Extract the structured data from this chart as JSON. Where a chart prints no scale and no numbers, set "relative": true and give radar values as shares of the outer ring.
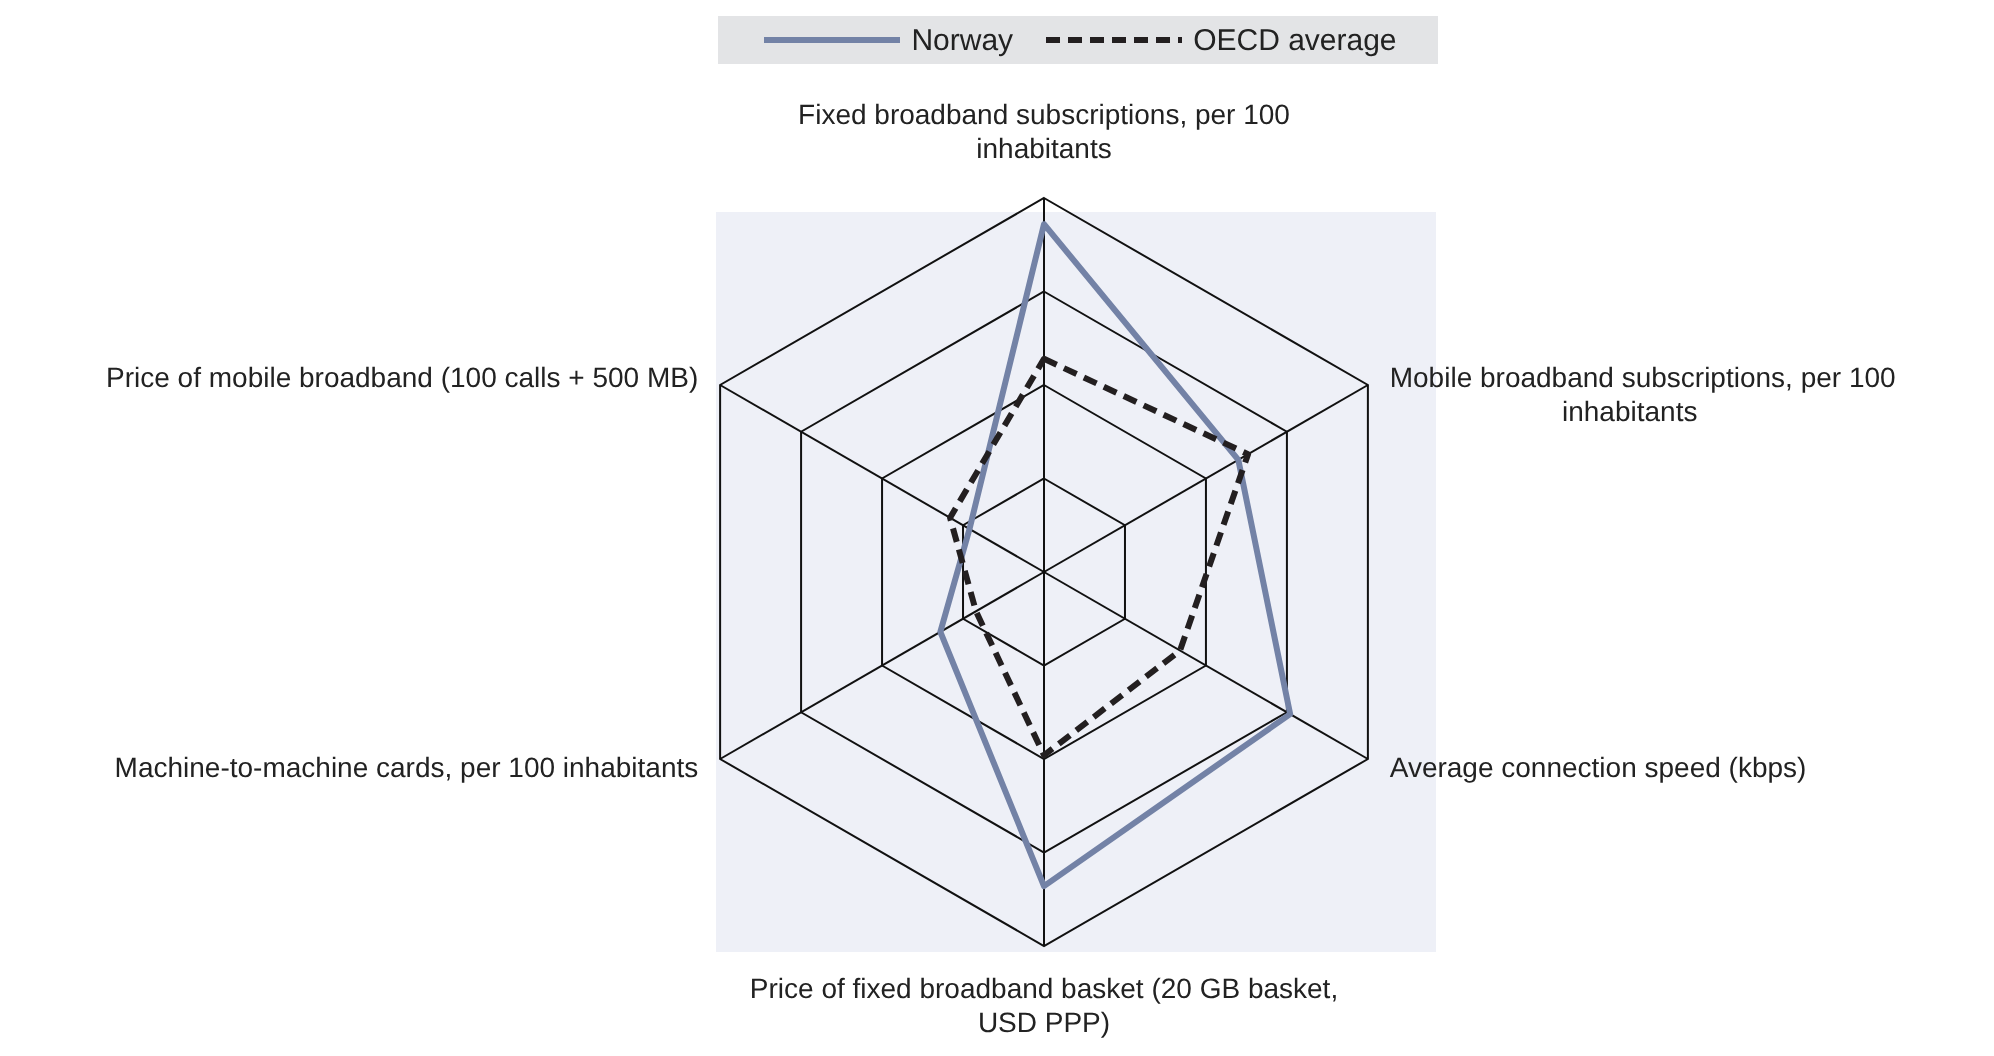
{
  "chart_data": {
    "type": "radar",
    "relative": true,
    "legend": "top",
    "grid": true,
    "categories": [
      "Fixed broadband subscriptions, per 100 inhabitants",
      "Mobile broadband subscriptions, per 100 inhabitants",
      "Average connection speed (kbps)",
      "Price of fixed broadband basket (20 GB basket, USD PPP)",
      "Machine-to-machine cards, per 100 inhabitants",
      "Price of mobile broadband (100 calls + 500 MB)"
    ],
    "series": [
      {
        "name": "Norway",
        "color": "#7382a6",
        "line_style": "solid",
        "values": [
          0.93,
          0.6,
          0.76,
          0.84,
          0.32,
          0.23
        ]
      },
      {
        "name": "OECD average",
        "color": "#231f20",
        "line_style": "dashed",
        "values": [
          0.57,
          0.63,
          0.42,
          0.49,
          0.21,
          0.29
        ]
      }
    ]
  }
}
